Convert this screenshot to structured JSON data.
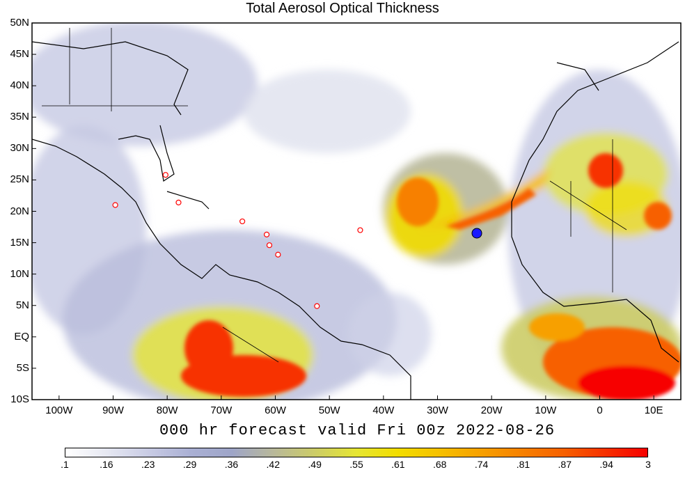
{
  "title": "Total Aerosol Optical Thickness",
  "subtitle": "000 hr forecast valid Fri 00z 2022-08-26",
  "map": {
    "lat_labels": [
      "50N",
      "45N",
      "40N",
      "35N",
      "30N",
      "25N",
      "20N",
      "15N",
      "10N",
      "5N",
      "EQ",
      "5S",
      "10S"
    ],
    "lon_labels": [
      "100W",
      "90W",
      "80W",
      "70W",
      "60W",
      "50W",
      "40W",
      "30W",
      "20W",
      "10W",
      "0",
      "10E"
    ],
    "lat_range": [
      -10,
      50
    ],
    "lon_range": [
      -105,
      15
    ],
    "marker_color": "#1a1aff",
    "station_color": "#ff0000"
  },
  "colorbar": {
    "labels": [
      ".1",
      ".16",
      ".23",
      ".29",
      ".36",
      ".42",
      ".49",
      ".55",
      ".61",
      ".68",
      ".74",
      ".81",
      ".87",
      ".94",
      "3"
    ],
    "colors": [
      "#ffffff",
      "#e6e8f2",
      "#c8cbe4",
      "#aab0d4",
      "#9ea5c8",
      "#b8b89a",
      "#cccc66",
      "#e6e633",
      "#f2dd00",
      "#f5c000",
      "#f7a000",
      "#f78000",
      "#f76000",
      "#f73000",
      "#f70000"
    ]
  }
}
